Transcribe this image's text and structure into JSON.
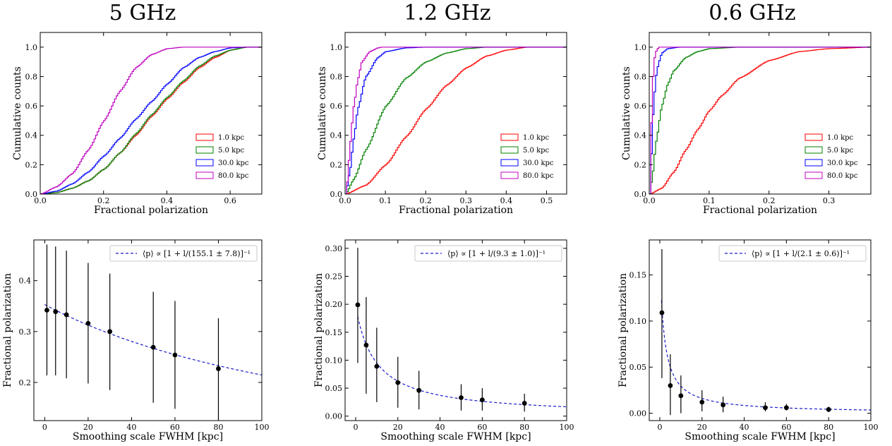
{
  "chart_data": [
    {
      "panel": "top-left",
      "title": "5 GHz",
      "type": "line",
      "xlabel": "Fractional polarization",
      "ylabel": "Cumulative counts",
      "xlim": [
        0.0,
        0.7
      ],
      "ylim": [
        0.0,
        1.1
      ],
      "xticks": [
        "0.0",
        "0.2",
        "0.4",
        "0.6"
      ],
      "yticks": [
        "0.0",
        "0.2",
        "0.4",
        "0.6",
        "0.8",
        "1.0"
      ],
      "legend_position": "lower-right",
      "series": [
        {
          "name": "1.0 kpc",
          "color": "#ff0000",
          "x": [
            0,
            0.05,
            0.1,
            0.15,
            0.2,
            0.25,
            0.3,
            0.35,
            0.4,
            0.45,
            0.5,
            0.55,
            0.6,
            0.65,
            0.7
          ],
          "y": [
            0,
            0.01,
            0.04,
            0.09,
            0.17,
            0.28,
            0.4,
            0.53,
            0.65,
            0.76,
            0.86,
            0.93,
            0.98,
            1.0,
            1.0
          ]
        },
        {
          "name": "5.0 kpc",
          "color": "#008000",
          "x": [
            0,
            0.05,
            0.1,
            0.15,
            0.2,
            0.25,
            0.3,
            0.35,
            0.4,
            0.45,
            0.5,
            0.55,
            0.6,
            0.65,
            0.7
          ],
          "y": [
            0,
            0.01,
            0.04,
            0.09,
            0.17,
            0.28,
            0.41,
            0.54,
            0.66,
            0.77,
            0.87,
            0.94,
            0.98,
            1.0,
            1.0
          ]
        },
        {
          "name": "30.0 kpc",
          "color": "#0000ff",
          "x": [
            0,
            0.05,
            0.1,
            0.15,
            0.2,
            0.25,
            0.3,
            0.35,
            0.4,
            0.45,
            0.5,
            0.55,
            0.6,
            0.65,
            0.7
          ],
          "y": [
            0,
            0.02,
            0.07,
            0.15,
            0.26,
            0.38,
            0.51,
            0.63,
            0.75,
            0.86,
            0.93,
            0.97,
            0.995,
            1.0,
            1.0
          ]
        },
        {
          "name": "80.0 kpc",
          "color": "#bf00bf",
          "x": [
            0,
            0.05,
            0.1,
            0.15,
            0.2,
            0.25,
            0.3,
            0.35,
            0.4,
            0.45,
            0.5,
            0.55,
            0.6,
            0.65,
            0.7
          ],
          "y": [
            0,
            0.05,
            0.14,
            0.3,
            0.5,
            0.7,
            0.86,
            0.95,
            0.99,
            1.0,
            1.0,
            1.0,
            1.0,
            1.0,
            1.0
          ]
        }
      ]
    },
    {
      "panel": "top-middle",
      "title": "1.2 GHz",
      "type": "line",
      "xlabel": "Fractional polarization",
      "ylabel": "Cumulative counts",
      "xlim": [
        0.0,
        0.55
      ],
      "ylim": [
        0.0,
        1.1
      ],
      "xticks": [
        "0.0",
        "0.1",
        "0.2",
        "0.3",
        "0.4",
        "0.5"
      ],
      "yticks": [
        "0.0",
        "0.2",
        "0.4",
        "0.6",
        "0.8",
        "1.0"
      ],
      "legend_position": "lower-right",
      "series": [
        {
          "name": "1.0 kpc",
          "color": "#ff0000",
          "x": [
            0,
            0.05,
            0.1,
            0.15,
            0.2,
            0.25,
            0.3,
            0.35,
            0.4,
            0.45,
            0.5,
            0.55
          ],
          "y": [
            0,
            0.06,
            0.2,
            0.39,
            0.58,
            0.74,
            0.86,
            0.94,
            0.98,
            1.0,
            1.0,
            1.0
          ]
        },
        {
          "name": "5.0 kpc",
          "color": "#008000",
          "x": [
            0,
            0.02,
            0.05,
            0.1,
            0.15,
            0.2,
            0.25,
            0.3,
            0.35,
            0.4,
            0.45,
            0.5,
            0.55
          ],
          "y": [
            0,
            0.1,
            0.3,
            0.6,
            0.79,
            0.9,
            0.96,
            0.99,
            1.0,
            1.0,
            1.0,
            1.0,
            1.0
          ]
        },
        {
          "name": "30.0 kpc",
          "color": "#0000ff",
          "x": [
            0,
            0.01,
            0.02,
            0.03,
            0.05,
            0.08,
            0.1,
            0.15,
            0.2,
            0.25,
            0.3,
            0.55
          ],
          "y": [
            0,
            0.15,
            0.38,
            0.58,
            0.8,
            0.93,
            0.97,
            0.995,
            1.0,
            1.0,
            1.0,
            1.0
          ]
        },
        {
          "name": "80.0 kpc",
          "color": "#bf00bf",
          "x": [
            0,
            0.005,
            0.01,
            0.02,
            0.03,
            0.04,
            0.06,
            0.08,
            0.09,
            0.1,
            0.55
          ],
          "y": [
            0,
            0.1,
            0.32,
            0.6,
            0.78,
            0.9,
            0.97,
            0.995,
            1.0,
            1.0,
            1.0
          ]
        }
      ]
    },
    {
      "panel": "top-right",
      "title": "0.6 GHz",
      "type": "line",
      "xlabel": "Fractional polarization",
      "ylabel": "Cumulative counts",
      "xlim": [
        0.0,
        0.37
      ],
      "ylim": [
        0.0,
        1.1
      ],
      "xticks": [
        "0.0",
        "0.1",
        "0.2",
        "0.3"
      ],
      "yticks": [
        "0.0",
        "0.2",
        "0.4",
        "0.6",
        "0.8",
        "1.0"
      ],
      "legend_position": "lower-right",
      "series": [
        {
          "name": "1.0 kpc",
          "color": "#ff0000",
          "x": [
            0,
            0.02,
            0.04,
            0.06,
            0.08,
            0.1,
            0.12,
            0.15,
            0.2,
            0.25,
            0.3,
            0.37
          ],
          "y": [
            0,
            0.04,
            0.15,
            0.3,
            0.44,
            0.57,
            0.67,
            0.79,
            0.91,
            0.97,
            0.99,
            1.0
          ]
        },
        {
          "name": "5.0 kpc",
          "color": "#008000",
          "x": [
            0,
            0.005,
            0.01,
            0.02,
            0.03,
            0.04,
            0.06,
            0.08,
            0.1,
            0.15,
            0.2,
            0.37
          ],
          "y": [
            0,
            0.15,
            0.35,
            0.6,
            0.75,
            0.84,
            0.93,
            0.97,
            0.99,
            1.0,
            1.0,
            1.0
          ]
        },
        {
          "name": "30.0 kpc",
          "color": "#0000ff",
          "x": [
            0,
            0.003,
            0.006,
            0.01,
            0.015,
            0.02,
            0.03,
            0.05,
            0.37
          ],
          "y": [
            0,
            0.3,
            0.6,
            0.8,
            0.9,
            0.96,
            0.99,
            1.0,
            1.0
          ]
        },
        {
          "name": "80.0 kpc",
          "color": "#bf00bf",
          "x": [
            0,
            0.002,
            0.004,
            0.006,
            0.008,
            0.01,
            0.015,
            0.37
          ],
          "y": [
            0,
            0.4,
            0.7,
            0.85,
            0.93,
            0.97,
            1.0,
            1.0
          ]
        }
      ]
    },
    {
      "panel": "bottom-left",
      "type": "scatter",
      "xlabel": "Smoothing scale FWHM [kpc]",
      "ylabel": "Fractional polarization",
      "xlim": [
        -5,
        100
      ],
      "ylim": [
        0.125,
        0.48
      ],
      "xticks": [
        "0",
        "20",
        "40",
        "60",
        "80",
        "100"
      ],
      "xtick_values": [
        0,
        20,
        40,
        60,
        80,
        100
      ],
      "yticks": [
        "0.2",
        "0.3",
        "0.4"
      ],
      "ytick_values": [
        0.2,
        0.3,
        0.4
      ],
      "fit_label": "⟨p⟩ ∝ [1 + l/(155.1 ± 7.8)]⁻¹",
      "fit": {
        "p0": 0.353,
        "l0": 155.1,
        "xrange": [
          0,
          100
        ]
      },
      "points": {
        "x": [
          1,
          5,
          10,
          20,
          30,
          50,
          60,
          80
        ],
        "y": [
          0.342,
          0.339,
          0.333,
          0.316,
          0.3,
          0.269,
          0.254,
          0.227
        ],
        "yerr_low": [
          0.214,
          0.214,
          0.208,
          0.198,
          0.185,
          0.16,
          0.148,
          0.126
        ],
        "yerr_high": [
          0.471,
          0.467,
          0.459,
          0.435,
          0.414,
          0.378,
          0.36,
          0.326
        ]
      }
    },
    {
      "panel": "bottom-middle",
      "type": "scatter",
      "xlabel": "Smoothing scale FWHM [kpc]",
      "ylabel": "Fractional polarization",
      "xlim": [
        -5,
        100
      ],
      "ylim": [
        -0.008,
        0.315
      ],
      "xticks": [
        "0",
        "20",
        "40",
        "60",
        "80",
        "100"
      ],
      "xtick_values": [
        0,
        20,
        40,
        60,
        80,
        100
      ],
      "yticks": [
        "0.00",
        "0.05",
        "0.10",
        "0.15",
        "0.20",
        "0.25",
        "0.30"
      ],
      "ytick_values": [
        0.0,
        0.05,
        0.1,
        0.15,
        0.2,
        0.25,
        0.3
      ],
      "fit_label": "⟨p⟩ ∝ [1 + l/(9.3 ± 1.0)]⁻¹",
      "fit": {
        "p0": 0.197,
        "l0": 9.3,
        "xrange": [
          1,
          100
        ]
      },
      "points": {
        "x": [
          1,
          5,
          10,
          20,
          30,
          50,
          60,
          80
        ],
        "y": [
          0.199,
          0.127,
          0.089,
          0.06,
          0.046,
          0.033,
          0.029,
          0.023
        ],
        "yerr_low": [
          0.095,
          0.04,
          0.025,
          0.015,
          0.012,
          0.01,
          0.01,
          0.008
        ],
        "yerr_high": [
          0.301,
          0.213,
          0.158,
          0.106,
          0.081,
          0.057,
          0.05,
          0.04
        ]
      }
    },
    {
      "panel": "bottom-right",
      "type": "scatter",
      "xlabel": "Smoothing scale FWHM [kpc]",
      "ylabel": "Fractional polarization",
      "xlim": [
        -5,
        100
      ],
      "ylim": [
        -0.008,
        0.188
      ],
      "xticks": [
        "0",
        "20",
        "40",
        "60",
        "80",
        "100"
      ],
      "xtick_values": [
        0,
        20,
        40,
        60,
        80,
        100
      ],
      "yticks": [
        "0.00",
        "0.05",
        "0.10",
        "0.15"
      ],
      "ytick_values": [
        0.0,
        0.05,
        0.1,
        0.15
      ],
      "fit_label": "⟨p⟩ ∝ [1 + l/(2.1 ± 0.6)]⁻¹",
      "fit": {
        "p0": 0.169,
        "l0": 2.1,
        "xrange": [
          0.8,
          100
        ]
      },
      "points": {
        "x": [
          1,
          5,
          10,
          20,
          30,
          50,
          60,
          80
        ],
        "y": [
          0.109,
          0.03,
          0.019,
          0.012,
          0.009,
          0.006,
          0.006,
          0.004
        ],
        "yerr_low": [
          0.038,
          -0.002,
          0.0,
          0.002,
          0.001,
          0.002,
          0.003,
          0.002
        ],
        "yerr_high": [
          0.178,
          0.064,
          0.041,
          0.025,
          0.018,
          0.012,
          0.01,
          0.007
        ]
      }
    }
  ]
}
